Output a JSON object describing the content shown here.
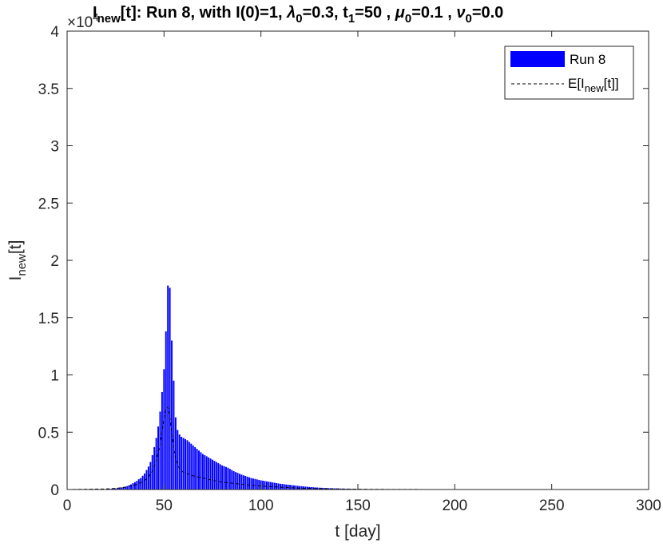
{
  "chart_data": {
    "type": "bar",
    "title": "I_new[t]:  Run 8, with I(0)=1, λ_0=0.3,  t_1=50 , μ_0=0.1 , ν_0=0.0",
    "title_parts": {
      "p1_main": "I",
      "p1_sub": "new",
      "p1_rest": "[t]:  Run 8, with I(0)=1, ",
      "p2_main": "λ",
      "p2_sub": "0",
      "p2_rest": "=0.3,  t",
      "p3_sub": "1",
      "p3_rest": "=50 , ",
      "p4_main": "μ",
      "p4_sub": "0",
      "p4_rest": "=0.1 , ",
      "p5_main": "ν",
      "p5_sub": "0",
      "p5_rest": "=0.0"
    },
    "xlabel": "t [day]",
    "ylabel_main": "I",
    "ylabel_sub": "new",
    "ylabel_rest": "[t]",
    "y_exponent_base": "×10",
    "y_exponent_power": "4",
    "xlim": [
      0,
      300
    ],
    "ylim": [
      0,
      4
    ],
    "y_units_multiplier": 10000,
    "x_ticks": [
      "0",
      "50",
      "100",
      "150",
      "200",
      "250",
      "300"
    ],
    "y_ticks": [
      "0",
      "0.5",
      "1",
      "1.5",
      "2",
      "2.5",
      "3",
      "3.5",
      "4"
    ],
    "grid": false,
    "legend_position": "top-right",
    "legend": {
      "series1": "Run 8",
      "series2_main": "E[I",
      "series2_sub": "new",
      "series2_rest": "[t]]"
    },
    "series": [
      {
        "name": "Run 8",
        "style": "bar",
        "color": "#0000ff",
        "x": [
          20,
          22,
          24,
          26,
          28,
          30,
          31,
          32,
          33,
          34,
          35,
          36,
          37,
          38,
          39,
          40,
          41,
          42,
          43,
          44,
          45,
          46,
          47,
          48,
          49,
          50,
          51,
          52,
          53,
          54,
          55,
          56,
          57,
          58,
          59,
          60,
          62,
          64,
          66,
          68,
          70,
          72,
          74,
          76,
          78,
          80,
          83,
          86,
          90,
          95,
          100,
          105,
          110,
          115,
          120,
          125,
          130,
          135,
          140,
          145,
          150,
          160,
          170,
          180,
          200,
          220,
          250,
          280,
          300
        ],
        "values": [
          0.003,
          0.005,
          0.008,
          0.012,
          0.018,
          0.025,
          0.03,
          0.037,
          0.045,
          0.055,
          0.065,
          0.075,
          0.09,
          0.1,
          0.12,
          0.14,
          0.17,
          0.2,
          0.24,
          0.3,
          0.37,
          0.45,
          0.55,
          0.68,
          0.85,
          1.05,
          1.38,
          1.78,
          1.76,
          1.3,
          0.95,
          0.63,
          0.52,
          0.48,
          0.46,
          0.45,
          0.43,
          0.4,
          0.37,
          0.34,
          0.31,
          0.29,
          0.27,
          0.25,
          0.23,
          0.21,
          0.19,
          0.16,
          0.13,
          0.1,
          0.08,
          0.065,
          0.05,
          0.04,
          0.03,
          0.022,
          0.016,
          0.012,
          0.009,
          0.006,
          0.004,
          0.002,
          0.0015,
          0.001,
          0.0005,
          0.0003,
          0.0002,
          0.0001,
          0.0
        ]
      },
      {
        "name": "E[Inew[t]]",
        "style": "dashed-line",
        "color": "#000000",
        "x": [
          0,
          20,
          25,
          30,
          35,
          38,
          40,
          42,
          44,
          46,
          48,
          50,
          51,
          52,
          53,
          54,
          55,
          56,
          58,
          60,
          65,
          70,
          75,
          80,
          90,
          100,
          110,
          120,
          130,
          140,
          150,
          170,
          200,
          250,
          300
        ],
        "values": [
          0,
          0.005,
          0.01,
          0.02,
          0.04,
          0.06,
          0.08,
          0.11,
          0.16,
          0.25,
          0.4,
          0.62,
          0.7,
          0.72,
          0.65,
          0.5,
          0.36,
          0.27,
          0.18,
          0.15,
          0.12,
          0.1,
          0.08,
          0.065,
          0.045,
          0.03,
          0.02,
          0.012,
          0.008,
          0.005,
          0.003,
          0.001,
          0.0003,
          0.0001,
          0
        ]
      }
    ]
  }
}
